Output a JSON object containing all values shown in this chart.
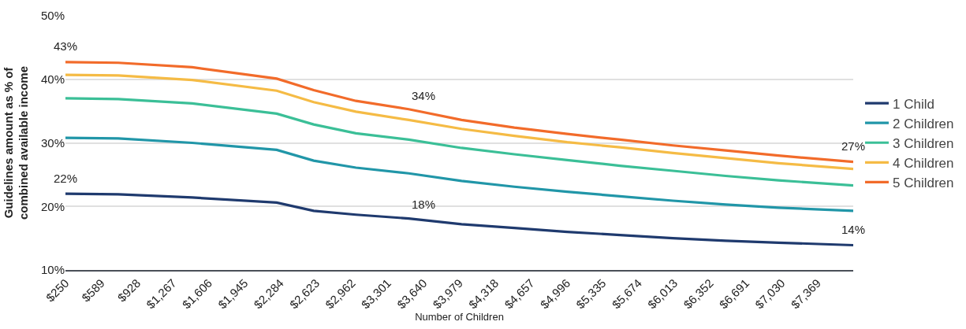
{
  "chart_data": {
    "type": "line",
    "xlabel": "Number of Children",
    "ylabel": "Guidelines amount as % of\ncombined available income",
    "x": [
      250,
      750,
      1450,
      2250,
      2600,
      3000,
      3500,
      4000,
      4500,
      5000,
      5500,
      6000,
      6500,
      7000,
      7708
    ],
    "series": [
      {
        "name": "1 Child",
        "color": "#1f3a6e",
        "values": [
          22.0,
          21.9,
          21.4,
          20.6,
          19.3,
          18.7,
          18.1,
          17.2,
          16.6,
          16.0,
          15.5,
          15.0,
          14.6,
          14.3,
          13.9
        ]
      },
      {
        "name": "2 Children",
        "color": "#2196a8",
        "values": [
          30.8,
          30.7,
          30.0,
          28.9,
          27.2,
          26.1,
          25.2,
          24.0,
          23.1,
          22.3,
          21.6,
          20.9,
          20.3,
          19.8,
          19.3
        ]
      },
      {
        "name": "3 Children",
        "color": "#3bbf97",
        "values": [
          37.0,
          36.9,
          36.2,
          34.6,
          32.9,
          31.5,
          30.5,
          29.2,
          28.2,
          27.3,
          26.4,
          25.6,
          24.8,
          24.1,
          23.3
        ]
      },
      {
        "name": "4 Children",
        "color": "#f5bb45",
        "values": [
          40.7,
          40.6,
          39.9,
          38.2,
          36.4,
          34.9,
          33.6,
          32.2,
          31.1,
          30.1,
          29.3,
          28.4,
          27.6,
          26.8,
          25.9
        ]
      },
      {
        "name": "5 Children",
        "color": "#f26b2a",
        "values": [
          42.7,
          42.6,
          41.9,
          40.1,
          38.3,
          36.6,
          35.3,
          33.6,
          32.4,
          31.4,
          30.5,
          29.6,
          28.8,
          28.0,
          27.0
        ]
      }
    ],
    "annotations": [
      {
        "text": "43%",
        "x": 250,
        "y": 42.7
      },
      {
        "text": "22%",
        "x": 250,
        "y": 22.0
      },
      {
        "text": "34%",
        "x": 3640,
        "y": 34.9
      },
      {
        "text": "18%",
        "x": 3640,
        "y": 17.9
      },
      {
        "text": "27%",
        "x": 7708,
        "y": 27.0
      },
      {
        "text": "14%",
        "x": 7708,
        "y": 13.9
      }
    ],
    "xlim": [
      250,
      7708
    ],
    "xticks": [
      {
        "value": 250,
        "label": "$250"
      },
      {
        "value": 589,
        "label": "$589"
      },
      {
        "value": 928,
        "label": "$928"
      },
      {
        "value": 1267,
        "label": "$1,267"
      },
      {
        "value": 1606,
        "label": "$1,606"
      },
      {
        "value": 1945,
        "label": "$1,945"
      },
      {
        "value": 2284,
        "label": "$2,284"
      },
      {
        "value": 2623,
        "label": "$2,623"
      },
      {
        "value": 2962,
        "label": "$2,962"
      },
      {
        "value": 3301,
        "label": "$3,301"
      },
      {
        "value": 3640,
        "label": "$3,640"
      },
      {
        "value": 3979,
        "label": "$3,979"
      },
      {
        "value": 4318,
        "label": "$4,318"
      },
      {
        "value": 4657,
        "label": "$4,657"
      },
      {
        "value": 4996,
        "label": "$4,996"
      },
      {
        "value": 5335,
        "label": "$5,335"
      },
      {
        "value": 5674,
        "label": "$5,674"
      },
      {
        "value": 6013,
        "label": "$6,013"
      },
      {
        "value": 6352,
        "label": "$6,352"
      },
      {
        "value": 6691,
        "label": "$6,691"
      },
      {
        "value": 7030,
        "label": "$7,030"
      },
      {
        "value": 7369,
        "label": "$7,369"
      }
    ],
    "ylim": [
      10,
      50
    ],
    "yticks": [
      {
        "value": 10,
        "label": "10%"
      },
      {
        "value": 20,
        "label": "20%"
      },
      {
        "value": 30,
        "label": "30%"
      },
      {
        "value": 40,
        "label": "40%"
      },
      {
        "value": 50,
        "label": "50%"
      }
    ],
    "grid": "y",
    "legend": "right",
    "marker": "none",
    "line_style": "solid"
  }
}
